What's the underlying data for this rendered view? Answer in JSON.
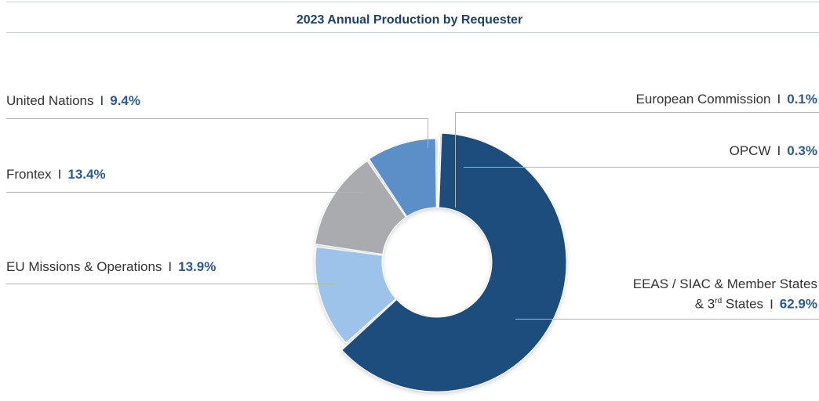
{
  "chart_data": {
    "type": "pie",
    "variant": "donut",
    "title": "2023 Annual Production by Requester",
    "separator": "I",
    "slices": [
      {
        "name": "EEAS / SIAC & Member States & 3rd States",
        "label_line1": "EEAS / SIAC & Member States",
        "label_line2_pre": "& 3",
        "label_line2_sup": "rd",
        "label_line2_post": " States",
        "value": 62.9,
        "display": "62.9%",
        "color": "#1f4d7d"
      },
      {
        "name": "EU Missions & Operations",
        "value": 13.9,
        "display": "13.9%",
        "color": "#9ec3ea"
      },
      {
        "name": "Frontex",
        "value": 13.4,
        "display": "13.4%",
        "color": "#a9abae"
      },
      {
        "name": "United Nations",
        "value": 9.4,
        "display": "9.4%",
        "color": "#5b8ec7"
      },
      {
        "name": "European Commission",
        "value": 0.1,
        "display": "0.1%",
        "color": "#2e5a94"
      },
      {
        "name": "OPCW",
        "value": 0.3,
        "display": "0.3%",
        "color": "#2e5a94"
      }
    ],
    "legend": "none"
  }
}
